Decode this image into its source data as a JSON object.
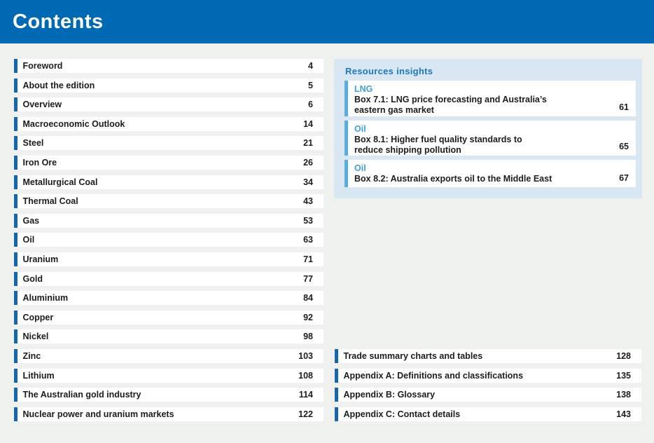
{
  "header": {
    "title": "Contents"
  },
  "colors": {
    "header_bg": "#0069B4",
    "row_accent_bar": "#1467AE",
    "insights_panel_bg": "#D9E7F3",
    "insights_title": "#1C77BE",
    "category_label": "#3FA0DA",
    "card_accent_bar": "#55AEDF",
    "page_bg": "#EFF1EF"
  },
  "left_toc": {
    "items": [
      {
        "label": "Foreword",
        "page": "4"
      },
      {
        "label": "About the edition",
        "page": "5"
      },
      {
        "label": "Overview",
        "page": "6"
      },
      {
        "label": "Macroeconomic Outlook",
        "page": "14"
      },
      {
        "label": "Steel",
        "page": "21"
      },
      {
        "label": "Iron Ore",
        "page": "26"
      },
      {
        "label": "Metallurgical Coal",
        "page": "34"
      },
      {
        "label": "Thermal Coal",
        "page": "43"
      },
      {
        "label": "Gas",
        "page": "53"
      },
      {
        "label": "Oil",
        "page": "63"
      },
      {
        "label": "Uranium",
        "page": "71"
      },
      {
        "label": "Gold",
        "page": "77"
      },
      {
        "label": "Aluminium",
        "page": "84"
      },
      {
        "label": "Copper",
        "page": "92"
      },
      {
        "label": "Nickel",
        "page": "98"
      },
      {
        "label": "Zinc",
        "page": "103"
      },
      {
        "label": "Lithium",
        "page": "108"
      },
      {
        "label": "The Australian gold industry",
        "page": "114"
      },
      {
        "label": "Nuclear power and uranium markets",
        "page": "122"
      }
    ]
  },
  "insights": {
    "title": "Resources insights",
    "items": [
      {
        "category": "LNG",
        "title_lines": [
          "Box 7.1: LNG price forecasting and Australia’s",
          "eastern gas market"
        ],
        "page": "61"
      },
      {
        "category": "Oil",
        "title_lines": [
          "Box 8.1: Higher fuel quality standards to",
          "reduce shipping pollution"
        ],
        "page": "65"
      },
      {
        "category": "Oil",
        "title_lines": [
          "Box 8.2: Australia exports oil to the Middle East"
        ],
        "page": "67"
      }
    ]
  },
  "bottom_toc": {
    "items": [
      {
        "label": "Trade summary charts and tables",
        "page": "128"
      },
      {
        "label": "Appendix A: Definitions and classifications",
        "page": "135"
      },
      {
        "label": "Appendix B: Glossary",
        "page": "138"
      },
      {
        "label": "Appendix C: Contact details",
        "page": "143"
      }
    ]
  }
}
